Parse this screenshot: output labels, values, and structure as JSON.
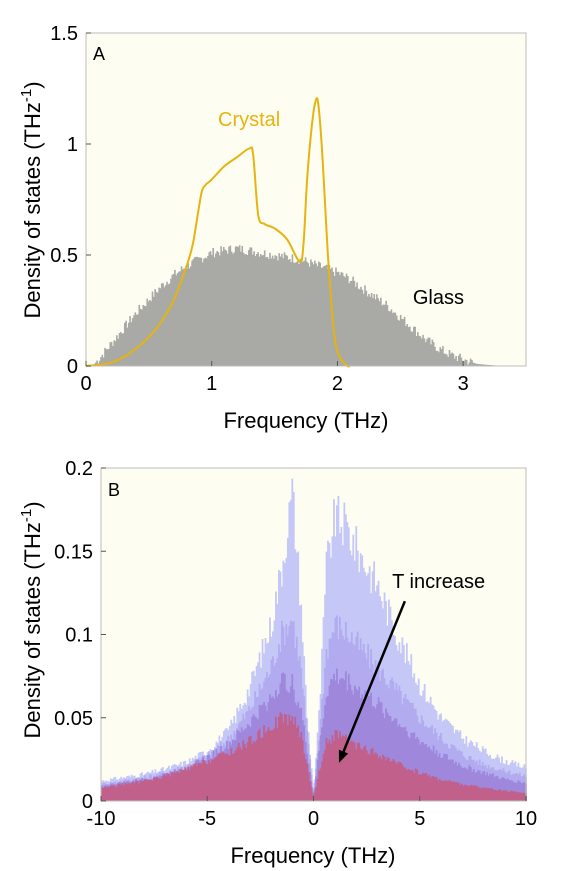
{
  "figure": {
    "background": "#fdfdf2",
    "glass_color": "#a9aaa6",
    "crystal_color": "#e6b410",
    "series_colors": [
      "#c5c7f7",
      "#aea6ef",
      "#9b80d8",
      "#c75a7c"
    ]
  },
  "chart_data": [
    {
      "type": "area",
      "panel_label": "A",
      "xlabel": "Frequency (THz)",
      "ylabel": "Density of states (THz",
      "ylabel_sup": "-1",
      "ylabel_close": ")",
      "xlim": [
        0,
        3.5
      ],
      "ylim": [
        0,
        1.5
      ],
      "xticks": [
        0,
        1,
        2,
        3
      ],
      "xtick_labels": [
        "0",
        "1",
        "2",
        "3"
      ],
      "yticks": [
        0,
        0.5,
        1,
        1.5
      ],
      "ytick_labels": [
        "0",
        "0.5",
        "1",
        "1.5"
      ],
      "annotations": [
        {
          "text": "Crystal",
          "x": 1.05,
          "y": 1.08,
          "color": "#e6b410"
        },
        {
          "text": "Glass",
          "x": 2.6,
          "y": 0.28,
          "color": "#000000"
        }
      ],
      "series": [
        {
          "name": "Glass",
          "kind": "histogram",
          "x": [
            0.05,
            0.1,
            0.2,
            0.3,
            0.4,
            0.5,
            0.6,
            0.7,
            0.8,
            0.9,
            1.0,
            1.1,
            1.2,
            1.3,
            1.4,
            1.5,
            1.6,
            1.7,
            1.8,
            1.9,
            2.0,
            2.1,
            2.2,
            2.3,
            2.4,
            2.5,
            2.6,
            2.7,
            2.8,
            2.9,
            3.0,
            3.1,
            3.2,
            3.3
          ],
          "y": [
            0.0,
            0.03,
            0.1,
            0.17,
            0.24,
            0.3,
            0.36,
            0.41,
            0.45,
            0.48,
            0.51,
            0.52,
            0.53,
            0.52,
            0.51,
            0.5,
            0.49,
            0.48,
            0.46,
            0.44,
            0.42,
            0.39,
            0.35,
            0.31,
            0.27,
            0.22,
            0.17,
            0.12,
            0.08,
            0.05,
            0.03,
            0.01,
            0.005,
            0.0
          ]
        },
        {
          "name": "Crystal",
          "kind": "line",
          "x": [
            0.0,
            0.1,
            0.2,
            0.3,
            0.4,
            0.5,
            0.6,
            0.7,
            0.8,
            0.85,
            0.9,
            0.93,
            1.0,
            1.1,
            1.2,
            1.3,
            1.33,
            1.37,
            1.42,
            1.5,
            1.6,
            1.7,
            1.73,
            1.76,
            1.8,
            1.83,
            1.85,
            1.88,
            1.93,
            1.98,
            2.03,
            2.08,
            2.1
          ],
          "y": [
            0.0,
            0.005,
            0.015,
            0.04,
            0.08,
            0.13,
            0.2,
            0.3,
            0.45,
            0.55,
            0.72,
            0.8,
            0.84,
            0.9,
            0.94,
            0.98,
            0.95,
            0.68,
            0.64,
            0.62,
            0.57,
            0.47,
            0.55,
            0.85,
            1.1,
            1.2,
            1.17,
            0.95,
            0.45,
            0.12,
            0.03,
            0.0,
            0.0
          ]
        }
      ]
    },
    {
      "type": "area",
      "panel_label": "B",
      "xlabel": "Frequency (THz)",
      "ylabel": "Density of states (THz",
      "ylabel_sup": "-1",
      "ylabel_close": ")",
      "xlim": [
        -10,
        10
      ],
      "ylim": [
        0,
        0.2
      ],
      "xticks": [
        -10,
        -5,
        0,
        5,
        10
      ],
      "xtick_labels": [
        "-10",
        "-5",
        "0",
        "5",
        "10"
      ],
      "yticks": [
        0,
        0.05,
        0.1,
        0.15,
        0.2
      ],
      "ytick_labels": [
        "0",
        "0.05",
        "0.1",
        "0.15",
        "0.2"
      ],
      "annotations": [
        {
          "text": "T increase",
          "x": 3.7,
          "y": 0.128,
          "color": "#000000"
        }
      ],
      "arrow": {
        "from": [
          4.3,
          0.12
        ],
        "to": [
          1.2,
          0.023
        ]
      },
      "x": [
        -10,
        -9,
        -8,
        -7,
        -6,
        -5,
        -4,
        -3,
        -2,
        -1.5,
        -1,
        -0.6,
        -0.3,
        0,
        0.3,
        0.6,
        1,
        1.5,
        2,
        3,
        4,
        5,
        6,
        7,
        8,
        9,
        10
      ],
      "series": [
        {
          "name": "",
          "y": [
            0.012,
            0.014,
            0.016,
            0.019,
            0.023,
            0.03,
            0.042,
            0.068,
            0.105,
            0.14,
            0.185,
            0.12,
            0.05,
            0.005,
            0.06,
            0.14,
            0.17,
            0.165,
            0.152,
            0.13,
            0.098,
            0.07,
            0.05,
            0.038,
            0.03,
            0.024,
            0.02
          ]
        },
        {
          "name": "",
          "y": [
            0.01,
            0.012,
            0.014,
            0.017,
            0.021,
            0.027,
            0.037,
            0.055,
            0.08,
            0.1,
            0.11,
            0.08,
            0.04,
            0.004,
            0.045,
            0.09,
            0.106,
            0.102,
            0.095,
            0.08,
            0.065,
            0.05,
            0.038,
            0.028,
            0.022,
            0.018,
            0.015
          ]
        },
        {
          "name": "",
          "y": [
            0.009,
            0.011,
            0.013,
            0.016,
            0.02,
            0.026,
            0.034,
            0.047,
            0.062,
            0.072,
            0.07,
            0.055,
            0.03,
            0.003,
            0.035,
            0.065,
            0.075,
            0.073,
            0.068,
            0.058,
            0.047,
            0.036,
            0.028,
            0.021,
            0.017,
            0.013,
            0.011
          ]
        },
        {
          "name": "",
          "y": [
            0.008,
            0.01,
            0.012,
            0.015,
            0.019,
            0.024,
            0.029,
            0.036,
            0.045,
            0.05,
            0.05,
            0.04,
            0.022,
            0.002,
            0.02,
            0.035,
            0.04,
            0.037,
            0.033,
            0.028,
            0.022,
            0.017,
            0.013,
            0.01,
            0.008,
            0.006,
            0.005
          ]
        }
      ]
    }
  ]
}
